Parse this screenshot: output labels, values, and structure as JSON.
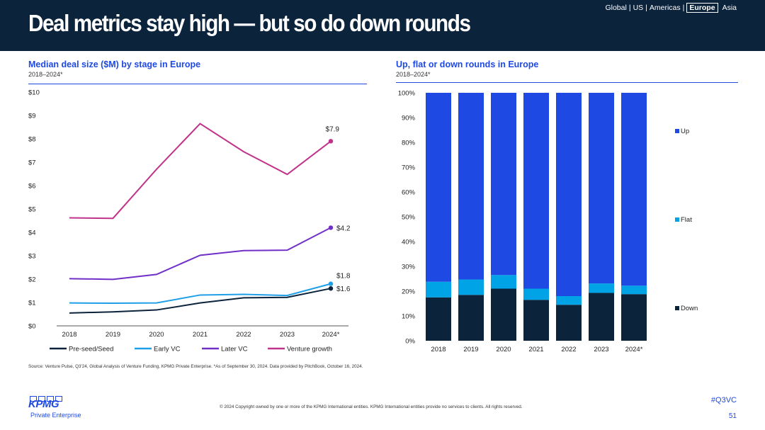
{
  "header": {
    "title": "Deal metrics stay high — but so do down rounds",
    "regions": [
      "Global",
      "US",
      "Americas",
      "Europe",
      "Asia"
    ],
    "active_region": "Europe"
  },
  "left_chart": {
    "title": "Median deal size ($M) by stage in Europe",
    "subtitle": "2018–2024*"
  },
  "right_chart": {
    "title": "Up, flat or down rounds in Europe",
    "subtitle": "2018–2024*"
  },
  "chart_data": [
    {
      "type": "line",
      "title": "Median deal size ($M) by stage in Europe",
      "categories": [
        "2018",
        "2019",
        "2020",
        "2021",
        "2022",
        "2023",
        "2024*"
      ],
      "y_ticks": [
        "$0",
        "$1",
        "$2",
        "$3",
        "$4",
        "$5",
        "$6",
        "$7",
        "$8",
        "$9",
        "$10"
      ],
      "ylim": [
        0,
        10
      ],
      "legend_position": "bottom",
      "series": [
        {
          "name": "Pre-seed/Seed",
          "color": "#0c233c",
          "values": [
            0.55,
            0.6,
            0.68,
            0.98,
            1.2,
            1.22,
            1.6
          ],
          "end_label": "$1.6"
        },
        {
          "name": "Early VC",
          "color": "#1e9fe8",
          "values": [
            0.98,
            0.97,
            0.98,
            1.32,
            1.35,
            1.3,
            1.8
          ],
          "end_label": "$1.8"
        },
        {
          "name": "Later VC",
          "color": "#7030c8",
          "values": [
            2.02,
            1.99,
            2.2,
            3.02,
            3.22,
            3.24,
            4.2
          ],
          "end_label": "$4.2"
        },
        {
          "name": "Venture growth",
          "color": "#c0338a",
          "values": [
            4.62,
            4.6,
            6.7,
            8.65,
            7.45,
            6.48,
            7.9
          ],
          "end_label": "$7.9"
        }
      ]
    },
    {
      "type": "bar",
      "stacked": true,
      "title": "Up, flat or down rounds in Europe",
      "categories": [
        "2018",
        "2019",
        "2020",
        "2021",
        "2022",
        "2023",
        "2024*"
      ],
      "y_ticks": [
        "0%",
        "10%",
        "20%",
        "30%",
        "40%",
        "50%",
        "60%",
        "70%",
        "80%",
        "90%",
        "100%"
      ],
      "ylim": [
        0,
        100
      ],
      "legend_position": "right",
      "series": [
        {
          "name": "Down",
          "color": "#0c233c",
          "values": [
            17.5,
            18.5,
            21,
            16.5,
            14.5,
            19.3,
            18.8
          ]
        },
        {
          "name": "Flat",
          "color": "#00a3e6",
          "values": [
            6.3,
            6.2,
            5.5,
            4.5,
            3.5,
            3.8,
            3.4
          ]
        },
        {
          "name": "Up",
          "color": "#1e49e2",
          "values": [
            76.2,
            75.3,
            73.5,
            79,
            82,
            76.9,
            77.8
          ]
        }
      ]
    }
  ],
  "footer": {
    "source": "Source: Venture Pulse, Q3'24, Global Analysis of Venture Funding, KPMG Private Enterprise. *As of September 30, 2024. Data provided by PitchBook, October 16, 2024.",
    "copyright": "© 2024 Copyright owned by one or more of the KPMG International entities. KPMG International entities provide no services to clients. All rights reserved.",
    "hashtag": "#Q3VC",
    "page_number": "51",
    "logo_word": "KPMG",
    "logo_sub": "Private Enterprise"
  }
}
